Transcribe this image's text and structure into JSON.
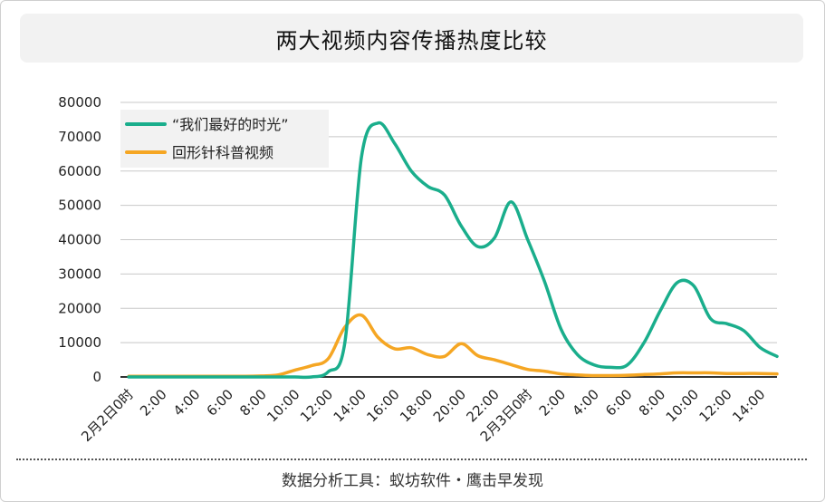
{
  "title": "两大视频内容传播热度比较",
  "footer": "数据分析工具：蚁坊软件・鹰击早发现",
  "chart_data": {
    "type": "line",
    "x": [
      "2月2日0时",
      "1:00",
      "2:00",
      "3:00",
      "4:00",
      "5:00",
      "6:00",
      "7:00",
      "8:00",
      "9:00",
      "10:00",
      "11:00",
      "12:00",
      "13:00",
      "14:00",
      "15:00",
      "16:00",
      "17:00",
      "18:00",
      "19:00",
      "20:00",
      "21:00",
      "22:00",
      "23:00",
      "2月3日0时",
      "1:00",
      "2:00",
      "3:00",
      "4:00",
      "5:00",
      "6:00",
      "7:00",
      "8:00",
      "9:00",
      "10:00",
      "11:00",
      "12:00",
      "13:00",
      "14:00",
      "15:00"
    ],
    "tick_labels": [
      "2月2日0时",
      "2:00",
      "4:00",
      "6:00",
      "8:00",
      "10:00",
      "12:00",
      "14:00",
      "16:00",
      "18:00",
      "20:00",
      "22:00",
      "2月3日0时",
      "2:00",
      "4:00",
      "6:00",
      "8:00",
      "10:00",
      "12:00",
      "14:00"
    ],
    "y_ticks": [
      "0",
      "10000",
      "20000",
      "30000",
      "40000",
      "50000",
      "60000",
      "70000",
      "80000"
    ],
    "ylim": [
      0,
      80000
    ],
    "grid": true,
    "legend_position": "top-left",
    "series": [
      {
        "name": "“我们最好的时光”",
        "color": "#1aae8c",
        "values": [
          0,
          0,
          0,
          0,
          0,
          0,
          0,
          0,
          0,
          0,
          0,
          0,
          1500,
          10000,
          64000,
          74000,
          68000,
          60000,
          55500,
          53000,
          44000,
          38000,
          40500,
          51000,
          40000,
          28000,
          14000,
          6500,
          3500,
          2800,
          3500,
          10000,
          19500,
          27500,
          26500,
          17000,
          15500,
          13500,
          8500,
          6000
        ]
      },
      {
        "name": "回形针科普视频",
        "color": "#f5a623",
        "values": [
          200,
          200,
          200,
          200,
          200,
          200,
          200,
          200,
          300,
          600,
          2000,
          3300,
          5300,
          14500,
          18000,
          11500,
          8200,
          8500,
          6500,
          6000,
          9700,
          6200,
          5000,
          3600,
          2200,
          1700,
          900,
          600,
          400,
          400,
          500,
          700,
          900,
          1200,
          1200,
          1200,
          1000,
          1000,
          1000,
          900
        ]
      }
    ]
  }
}
